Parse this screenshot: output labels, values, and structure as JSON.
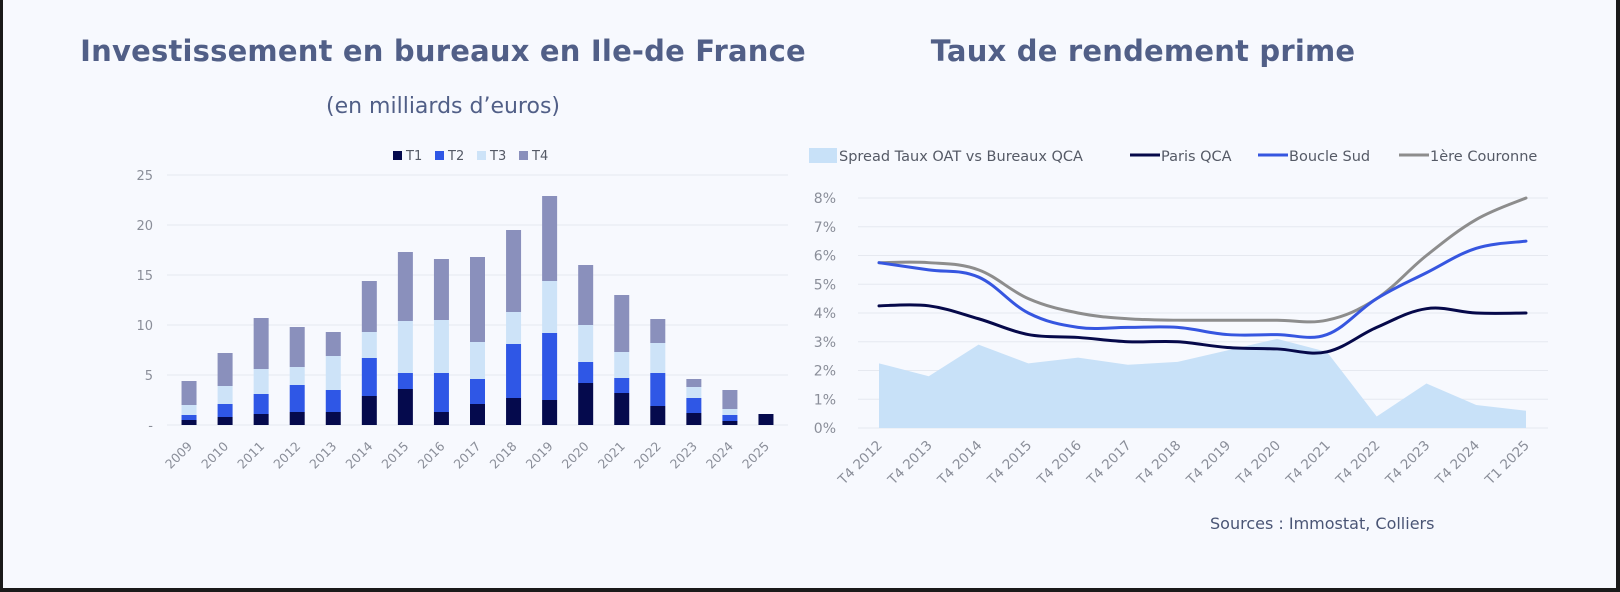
{
  "left": {
    "title": "Investissement en bureaux en Ile-de France",
    "subtitle": "(en milliards d’euros)"
  },
  "right": {
    "title": "Taux de rendement prime",
    "source": "Sources : Immostat, Colliers"
  },
  "colors": {
    "T1": "#050a4d",
    "T2": "#2f57e6",
    "T3": "#cde3f8",
    "T4": "#8a90bc",
    "spread": "#c8e1f8",
    "paris": "#06094a",
    "boucle": "#3656e0",
    "couronne": "#8d8d8d",
    "grid": "#e6e9f0",
    "tick": "#8a8e99"
  },
  "chart_data": [
    {
      "type": "bar",
      "stacked": true,
      "title": "Investissement en bureaux en Ile-de France",
      "subtitle": "(en milliards d’euros)",
      "xlabel": "",
      "ylabel": "",
      "ylim": [
        0,
        25
      ],
      "yticks": [
        0,
        5,
        10,
        15,
        20,
        25
      ],
      "ytick_labels": [
        "-",
        "5",
        "10",
        "15",
        "20",
        "25"
      ],
      "grid": true,
      "legend": "top-center",
      "categories": [
        "2009",
        "2010",
        "2011",
        "2012",
        "2013",
        "2014",
        "2015",
        "2016",
        "2017",
        "2018",
        "2019",
        "2020",
        "2021",
        "2022",
        "2023",
        "2024",
        "2025"
      ],
      "series": [
        {
          "name": "T1",
          "values": [
            0.5,
            0.8,
            1.1,
            1.3,
            1.3,
            2.9,
            3.6,
            1.3,
            2.1,
            2.7,
            2.5,
            4.2,
            3.2,
            1.9,
            1.2,
            0.4,
            1.1
          ]
        },
        {
          "name": "T2",
          "values": [
            0.5,
            1.3,
            2.0,
            2.7,
            2.2,
            3.8,
            1.6,
            3.9,
            2.5,
            5.4,
            6.7,
            2.1,
            1.5,
            3.3,
            1.5,
            0.6,
            0
          ]
        },
        {
          "name": "T3",
          "values": [
            1.0,
            1.8,
            2.5,
            1.8,
            3.4,
            2.6,
            5.2,
            5.3,
            3.7,
            3.2,
            5.2,
            3.7,
            2.6,
            3.0,
            1.1,
            0.6,
            0
          ]
        },
        {
          "name": "T4",
          "values": [
            2.4,
            3.3,
            5.1,
            4.0,
            2.4,
            5.1,
            6.9,
            6.1,
            8.5,
            8.2,
            8.5,
            6.0,
            5.7,
            2.4,
            0.8,
            1.9,
            0
          ]
        }
      ]
    },
    {
      "type": "line",
      "title": "Taux de rendement prime",
      "xlabel": "",
      "ylabel": "",
      "ylim": [
        0,
        8
      ],
      "yticks": [
        0,
        1,
        2,
        3,
        4,
        5,
        6,
        7,
        8
      ],
      "ytick_labels": [
        "0%",
        "1%",
        "2%",
        "3%",
        "4%",
        "5%",
        "6%",
        "7%",
        "8%"
      ],
      "grid": true,
      "legend": "top",
      "categories": [
        "T4 2012",
        "T4 2013",
        "T4 2014",
        "T4 2015",
        "T4 2016",
        "T4 2017",
        "T4 2018",
        "T4 2019",
        "T4 2020",
        "T4 2021",
        "T4 2022",
        "T4 2023",
        "T4 2024",
        "T1 2025"
      ],
      "series": [
        {
          "name": "Spread Taux OAT vs Bureaux QCA",
          "kind": "area",
          "values": [
            2.25,
            1.8,
            2.9,
            2.25,
            2.45,
            2.2,
            2.3,
            2.7,
            3.1,
            2.65,
            0.4,
            1.55,
            0.8,
            0.6
          ]
        },
        {
          "name": "Paris QCA",
          "kind": "line",
          "values": [
            4.25,
            4.25,
            3.8,
            3.25,
            3.15,
            3.0,
            3.0,
            2.8,
            2.75,
            2.65,
            3.5,
            4.15,
            4.0,
            4.0
          ]
        },
        {
          "name": "Boucle Sud",
          "kind": "line",
          "values": [
            5.75,
            5.5,
            5.25,
            4.0,
            3.5,
            3.5,
            3.5,
            3.25,
            3.25,
            3.25,
            4.5,
            5.4,
            6.25,
            6.5
          ]
        },
        {
          "name": "1ère Couronne",
          "kind": "line",
          "values": [
            5.75,
            5.75,
            5.5,
            4.5,
            4.0,
            3.8,
            3.75,
            3.75,
            3.75,
            3.75,
            4.5,
            6.0,
            7.25,
            8.0
          ]
        }
      ],
      "source": "Sources : Immostat, Colliers"
    }
  ]
}
